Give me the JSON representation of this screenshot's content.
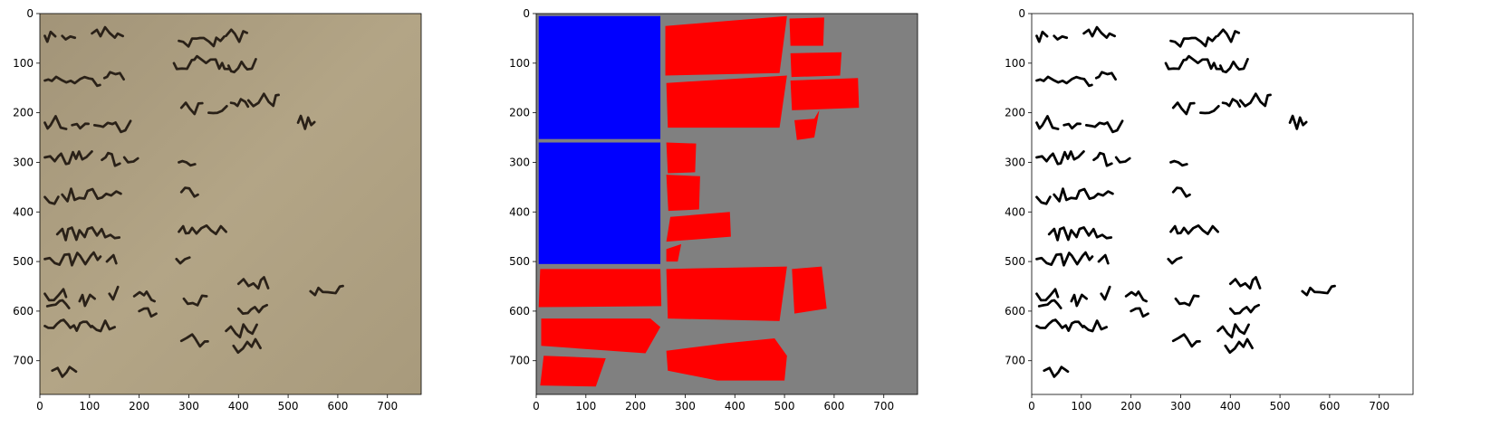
{
  "chart_data": [
    {
      "type": "image",
      "xlim": [
        0,
        768
      ],
      "ylim": [
        768,
        0
      ],
      "xticks": [
        0,
        100,
        200,
        300,
        400,
        500,
        600,
        700
      ],
      "yticks": [
        0,
        100,
        200,
        300,
        400,
        500,
        600,
        700
      ]
    },
    {
      "type": "image",
      "xlim": [
        0,
        768
      ],
      "ylim": [
        768,
        0
      ],
      "xticks": [
        0,
        100,
        200,
        300,
        400,
        500,
        600,
        700
      ],
      "yticks": [
        0,
        100,
        200,
        300,
        400,
        500,
        600,
        700
      ]
    },
    {
      "type": "image",
      "xlim": [
        0,
        768
      ],
      "ylim": [
        768,
        0
      ],
      "xticks": [
        0,
        100,
        200,
        300,
        400,
        500,
        600,
        700
      ],
      "yticks": [
        0,
        100,
        200,
        300,
        400,
        500,
        600,
        700
      ]
    }
  ]
}
